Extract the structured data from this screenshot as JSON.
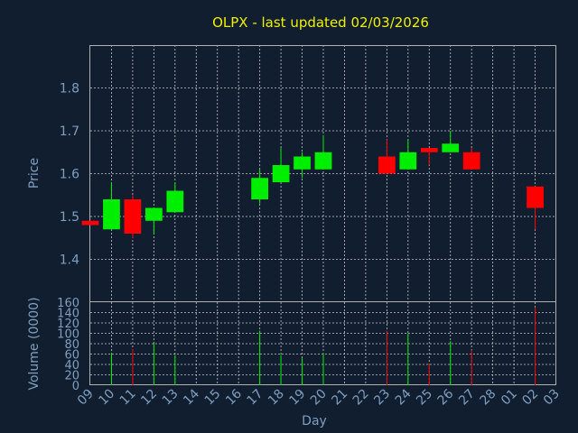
{
  "chart_data": [
    {
      "type": "candlestick",
      "title": "OLPX - last updated 02/03/2026",
      "ylabel": "Price",
      "ylim": [
        1.3,
        1.9
      ],
      "yticks": [
        "1.4",
        "1.5",
        "1.6",
        "1.7",
        "1.8"
      ],
      "ytick_values": [
        1.4,
        1.5,
        1.6,
        1.7,
        1.8
      ],
      "grid": true,
      "colors": {
        "up": "#00ee00",
        "down": "#ff0000",
        "title": "#f0f000",
        "axis_text": "#7f9fbf",
        "background": "#111e30"
      },
      "candles": [
        {
          "day": "09",
          "open": 1.49,
          "high": 1.49,
          "low": 1.48,
          "close": 1.48
        },
        {
          "day": "10",
          "open": 1.47,
          "high": 1.58,
          "low": 1.47,
          "close": 1.54
        },
        {
          "day": "11",
          "open": 1.54,
          "high": 1.55,
          "low": 1.45,
          "close": 1.46
        },
        {
          "day": "12",
          "open": 1.49,
          "high": 1.52,
          "low": 1.46,
          "close": 1.52
        },
        {
          "day": "13",
          "open": 1.51,
          "high": 1.58,
          "low": 1.51,
          "close": 1.56
        },
        {
          "day": "17",
          "open": 1.54,
          "high": 1.61,
          "low": 1.53,
          "close": 1.59
        },
        {
          "day": "18",
          "open": 1.58,
          "high": 1.66,
          "low": 1.58,
          "close": 1.62
        },
        {
          "day": "19",
          "open": 1.61,
          "high": 1.65,
          "low": 1.59,
          "close": 1.64
        },
        {
          "day": "20",
          "open": 1.61,
          "high": 1.69,
          "low": 1.61,
          "close": 1.65
        },
        {
          "day": "23",
          "open": 1.64,
          "high": 1.68,
          "low": 1.6,
          "close": 1.6
        },
        {
          "day": "24",
          "open": 1.61,
          "high": 1.68,
          "low": 1.61,
          "close": 1.65
        },
        {
          "day": "25",
          "open": 1.66,
          "high": 1.66,
          "low": 1.62,
          "close": 1.65
        },
        {
          "day": "26",
          "open": 1.65,
          "high": 1.7,
          "low": 1.65,
          "close": 1.67
        },
        {
          "day": "27",
          "open": 1.65,
          "high": 1.66,
          "low": 1.61,
          "close": 1.61
        },
        {
          "day": "02",
          "open": 1.57,
          "high": 1.57,
          "low": 1.47,
          "close": 1.52
        }
      ]
    },
    {
      "type": "bar",
      "ylabel": "Volume (0000)",
      "xlabel": "Day",
      "ylim": [
        0,
        160
      ],
      "yticks": [
        "0",
        "20",
        "40",
        "60",
        "80",
        "100",
        "120",
        "140",
        "160"
      ],
      "ytick_values": [
        0,
        20,
        40,
        60,
        80,
        100,
        120,
        140,
        160
      ],
      "xticks": [
        "09",
        "10",
        "11",
        "12",
        "13",
        "14",
        "15",
        "16",
        "17",
        "18",
        "19",
        "20",
        "21",
        "22",
        "23",
        "24",
        "25",
        "26",
        "27",
        "28",
        "01",
        "02",
        "03"
      ],
      "grid": true,
      "volumes": [
        {
          "day": "10",
          "value": 62,
          "direction": "up"
        },
        {
          "day": "11",
          "value": 70,
          "direction": "down"
        },
        {
          "day": "12",
          "value": 80,
          "direction": "up"
        },
        {
          "day": "13",
          "value": 58,
          "direction": "up"
        },
        {
          "day": "17",
          "value": 105,
          "direction": "up"
        },
        {
          "day": "18",
          "value": 58,
          "direction": "up"
        },
        {
          "day": "19",
          "value": 52,
          "direction": "up"
        },
        {
          "day": "20",
          "value": 62,
          "direction": "up"
        },
        {
          "day": "23",
          "value": 105,
          "direction": "down"
        },
        {
          "day": "24",
          "value": 100,
          "direction": "up"
        },
        {
          "day": "25",
          "value": 42,
          "direction": "down"
        },
        {
          "day": "26",
          "value": 85,
          "direction": "up"
        },
        {
          "day": "27",
          "value": 68,
          "direction": "down"
        },
        {
          "day": "02",
          "value": 150,
          "direction": "down"
        }
      ]
    }
  ]
}
